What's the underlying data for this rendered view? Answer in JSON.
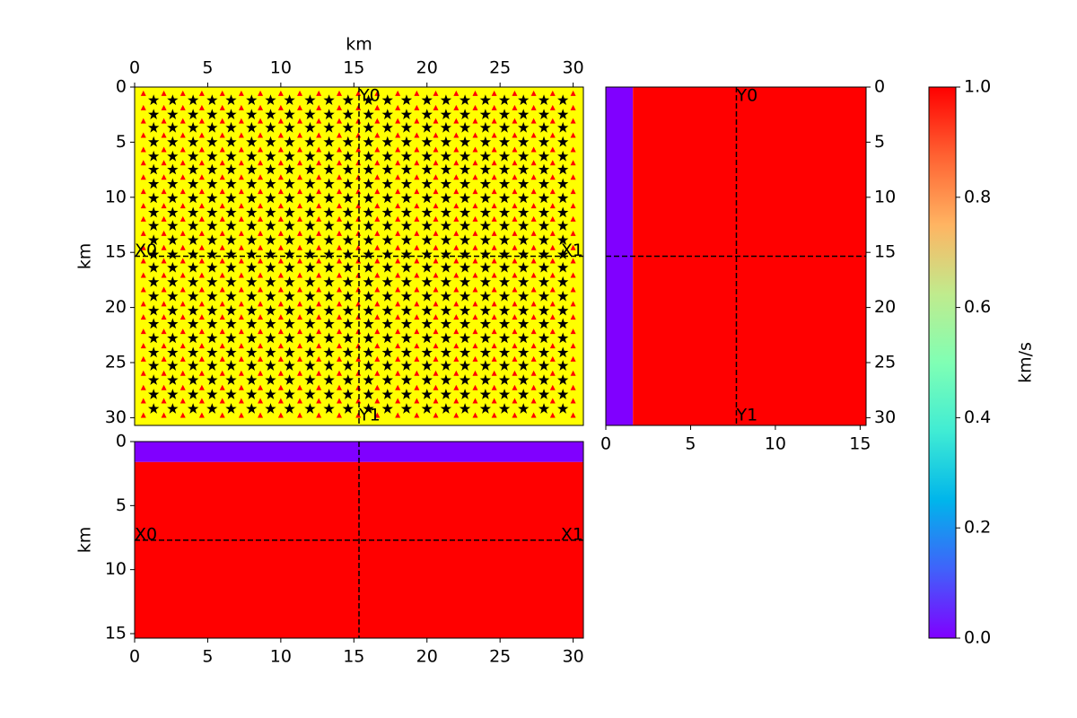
{
  "chart_data": [
    {
      "type": "map",
      "xlabel": "km",
      "ylabel": "km",
      "xaxis": "top",
      "yaxis": "left",
      "xlim": [
        0,
        30.7
      ],
      "ylim": [
        30.7,
        0
      ],
      "xticks": [
        0,
        5,
        10,
        15,
        20,
        25,
        30
      ],
      "yticks": [
        0,
        5,
        10,
        15,
        20,
        25,
        30
      ],
      "background": "#ffff00",
      "receivers": {
        "color": "#ff0000",
        "x": [
          0.6,
          2.0,
          3.3,
          4.6,
          6.0,
          7.3,
          8.6,
          10.0,
          11.3,
          12.6,
          14.0,
          15.3,
          16.6,
          18.0,
          19.3,
          20.6,
          22.0,
          23.3,
          24.6,
          26.0,
          27.3,
          28.6,
          30.0
        ],
        "y": [
          0.6,
          1.9,
          3.1,
          4.4,
          5.7,
          6.9,
          8.2,
          9.5,
          10.8,
          12.0,
          13.3,
          14.6,
          15.8,
          17.1,
          18.4,
          19.7,
          20.9,
          22.2,
          23.5,
          24.7,
          26.0,
          27.3,
          28.5,
          29.8
        ]
      },
      "sources": {
        "color": "#000000",
        "x": [
          1.3,
          2.6,
          4.0,
          5.3,
          6.6,
          8.0,
          9.3,
          10.6,
          12.0,
          13.3,
          14.6,
          16.0,
          17.3,
          18.6,
          20.0,
          21.3,
          22.6,
          24.0,
          25.3,
          26.6,
          28.0,
          29.3
        ],
        "y": [
          1.2,
          2.5,
          3.7,
          5.0,
          6.3,
          7.5,
          8.8,
          10.1,
          11.4,
          12.6,
          13.9,
          15.2,
          16.4,
          17.7,
          19.0,
          20.3,
          21.5,
          22.8,
          24.1,
          25.3,
          26.6,
          27.9,
          29.2
        ]
      },
      "hline": {
        "at": 15.35,
        "labels": [
          "X0",
          "X1"
        ]
      },
      "vline": {
        "at": 15.35,
        "labels": [
          "Y0",
          "Y1"
        ]
      }
    },
    {
      "type": "section",
      "xaxis": "bottom",
      "yaxis": "right",
      "depth_axis": "x",
      "xlim": [
        0,
        15.35
      ],
      "ylim": [
        30.7,
        0
      ],
      "xticks": [
        0,
        5,
        10,
        15
      ],
      "yticks": [
        0,
        5,
        10,
        15,
        20,
        25,
        30
      ],
      "layers": [
        {
          "top": 0,
          "bottom": 1.6,
          "value": 0
        },
        {
          "top": 1.6,
          "bottom": 15.35,
          "value": 1
        }
      ],
      "hline": {
        "at": 15.35,
        "labels": []
      },
      "vline": {
        "at": 7.7,
        "labels": [
          "Y0",
          "Y1"
        ]
      }
    },
    {
      "type": "section",
      "ylabel": "km",
      "xaxis": "bottom",
      "yaxis": "left",
      "depth_axis": "y",
      "xlim": [
        0,
        30.7
      ],
      "ylim": [
        15.35,
        0
      ],
      "xticks": [
        0,
        5,
        10,
        15,
        20,
        25,
        30
      ],
      "yticks": [
        0,
        5,
        10,
        15
      ],
      "layers": [
        {
          "top": 0,
          "bottom": 1.6,
          "value": 0
        },
        {
          "top": 1.6,
          "bottom": 15.35,
          "value": 1
        }
      ],
      "hline": {
        "at": 7.7,
        "labels": [
          "X0",
          "X1"
        ]
      },
      "vline": {
        "at": 15.35,
        "labels": []
      }
    },
    {
      "type": "colorbar",
      "ylabel": "km/s",
      "ylim": [
        0,
        1
      ],
      "yticks": [
        {
          "value": 0,
          "label": "0.0"
        },
        0.2,
        0.4,
        0.6,
        0.8,
        {
          "value": 1,
          "label": "1.0"
        }
      ],
      "colors": [
        "#8000ff",
        "#4062fa",
        "#00b5eb",
        "#40ecd4",
        "#80ffb4",
        "#c0eb8d",
        "#ffb462",
        "#ff6232",
        "#ff0000"
      ]
    }
  ]
}
